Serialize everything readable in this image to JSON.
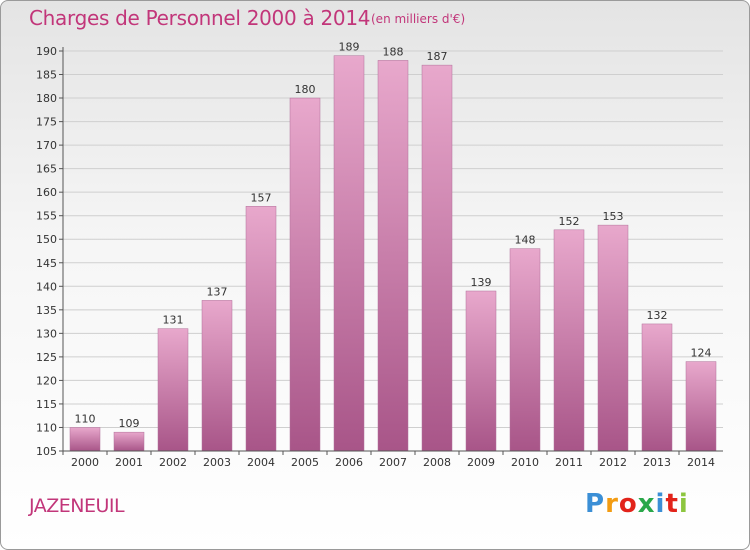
{
  "title": "Charges de Personnel 2000 à 2014",
  "unit": "(en milliers d'€)",
  "commune": "JAZENEUIL",
  "logo": {
    "letters": [
      "P",
      "r",
      "o",
      "x",
      "i",
      "t",
      "i"
    ],
    "colors": [
      "#3b8fd6",
      "#f39c12",
      "#e2231a",
      "#2aa84a",
      "#3b8fd6",
      "#e2231a",
      "#8dc63f"
    ]
  },
  "colors": {
    "accent": "#c2367a",
    "bar_light": "#e8a8cc",
    "bar_dark": "#a85588"
  },
  "chart_data": {
    "type": "bar",
    "title": "Charges de Personnel 2000 à 2014",
    "categories": [
      "2000",
      "2001",
      "2002",
      "2003",
      "2004",
      "2005",
      "2006",
      "2007",
      "2008",
      "2009",
      "2010",
      "2011",
      "2012",
      "2013",
      "2014"
    ],
    "values": [
      110,
      109,
      131,
      137,
      157,
      180,
      189,
      188,
      187,
      139,
      148,
      152,
      153,
      132,
      124
    ],
    "ylim": [
      105,
      190
    ],
    "yticks": [
      105,
      110,
      115,
      120,
      125,
      130,
      135,
      140,
      145,
      150,
      155,
      160,
      165,
      170,
      175,
      180,
      185,
      190
    ],
    "grid": true
  }
}
